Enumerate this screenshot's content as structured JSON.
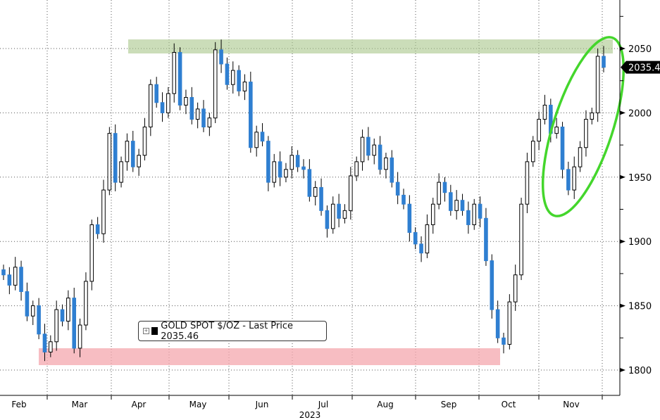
{
  "chart_data": {
    "type": "candlestick",
    "title": "GOLD SPOT $/OZ",
    "legend": {
      "label": "GOLD SPOT $/OZ - Last Price 2035.46",
      "placement": "bottom-left"
    },
    "last_price": 2035.46,
    "last_price_label": "2035.46",
    "ylim": [
      1780,
      2080
    ],
    "y_ticks": [
      1800,
      1850,
      1900,
      1950,
      2000,
      2050
    ],
    "y_tick_labels": [
      "1800",
      "1850",
      "1900",
      "1950",
      "2000",
      "2050"
    ],
    "x_tick_labels": [
      "Feb",
      "Mar",
      "Apr",
      "May",
      "Jun",
      "Jul",
      "Aug",
      "Sep",
      "Oct",
      "Nov"
    ],
    "x_year_label": "2023",
    "grid": true,
    "closes": [
      1874,
      1866,
      1880,
      1861,
      1842,
      1850,
      1828,
      1814,
      1822,
      1847,
      1838,
      1856,
      1817,
      1835,
      1869,
      1913,
      1906,
      1940,
      1984,
      1946,
      1962,
      1978,
      1958,
      1967,
      1989,
      2022,
      2008,
      2000,
      2015,
      2047,
      2006,
      2012,
      1995,
      2003,
      1989,
      1996,
      2049,
      2038,
      2022,
      2033,
      2017,
      2024,
      1973,
      1985,
      1978,
      1946,
      1962,
      1950,
      1956,
      1967,
      1958,
      1956,
      1935,
      1942,
      1924,
      1910,
      1929,
      1918,
      1924,
      1951,
      1962,
      1981,
      1967,
      1975,
      1956,
      1965,
      1946,
      1936,
      1929,
      1907,
      1898,
      1891,
      1913,
      1929,
      1946,
      1938,
      1924,
      1932,
      1924,
      1913,
      1929,
      1918,
      1885,
      1847,
      1825,
      1820,
      1853,
      1874,
      1929,
      1962,
      1978,
      1995,
      2006,
      1984,
      1989,
      1956,
      1940,
      1958,
      1973,
      1995,
      2000,
      2044,
      2035.46
    ],
    "series_colors": {
      "up": "#ffffff",
      "down": "#2f7fd1"
    },
    "annotations": [
      {
        "type": "band",
        "color": "#a9c78a",
        "y_range": [
          2045,
          2056
        ]
      },
      {
        "type": "band",
        "color": "#f4a7ad",
        "y_range": [
          1804,
          1817
        ]
      },
      {
        "type": "ellipse",
        "color": "#44d62c",
        "note": "highlight of recent rally"
      }
    ]
  }
}
